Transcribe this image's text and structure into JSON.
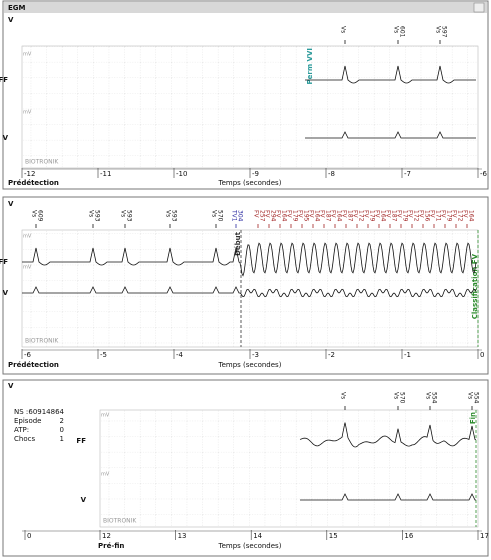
{
  "header": {
    "title": "EGM"
  },
  "panels": [
    {
      "corner": "V",
      "channels": [
        "FF",
        "V"
      ],
      "units": "mV",
      "brand": "BIOTRONIK",
      "markers": [
        {
          "label": "Vs"
        },
        {
          "label": "Vs",
          "interval": "601"
        },
        {
          "label": "Vs",
          "interval": "597"
        }
      ],
      "annotations": [
        {
          "text": "Perm VVI",
          "color": "#2a9a9a"
        }
      ],
      "x_labels": [
        "-12",
        "-11",
        "-10",
        "-9",
        "-8",
        "-7",
        "-6"
      ],
      "phase": "Prédétection",
      "axis_title": "Temps (secondes)"
    },
    {
      "corner": "V",
      "channels": [
        "FF",
        "V"
      ],
      "units": "mV",
      "brand": "BIOTRONIK",
      "markers": [
        {
          "label": "Vs",
          "interval": "609"
        },
        {
          "label": "Vs",
          "interval": "593"
        },
        {
          "label": "Vs",
          "interval": "593"
        },
        {
          "label": "Vs",
          "interval": "593"
        },
        {
          "label": "Vs",
          "interval": "570"
        },
        {
          "label": "TV1",
          "interval": "304",
          "color": "#2a2aa0"
        },
        {
          "label": "FV",
          "interval": "257",
          "color": "#a02020"
        },
        {
          "label": "FV",
          "interval": "294",
          "color": "#a02020"
        },
        {
          "label": "FV",
          "interval": "164",
          "color": "#a02020"
        },
        {
          "label": "FV",
          "interval": "179",
          "color": "#a02020"
        },
        {
          "label": "FV",
          "interval": "195",
          "color": "#a02020"
        },
        {
          "label": "FV",
          "interval": "164",
          "color": "#a02020"
        },
        {
          "label": "FV",
          "interval": "187",
          "color": "#a02020"
        },
        {
          "label": "FV",
          "interval": "164",
          "color": "#a02020"
        },
        {
          "label": "FV",
          "interval": "187",
          "color": "#a02020"
        },
        {
          "label": "FV",
          "interval": "172",
          "color": "#a02020"
        },
        {
          "label": "FV",
          "interval": "179",
          "color": "#a02020"
        },
        {
          "label": "FV",
          "interval": "164",
          "color": "#a02020"
        },
        {
          "label": "FV",
          "interval": "187",
          "color": "#a02020"
        },
        {
          "label": "FV",
          "interval": "179",
          "color": "#a02020"
        },
        {
          "label": "FV",
          "interval": "172",
          "color": "#a02020"
        },
        {
          "label": "FV",
          "interval": "156",
          "color": "#a02020"
        },
        {
          "label": "FV",
          "interval": "171",
          "color": "#a02020"
        },
        {
          "label": "FV",
          "interval": "179",
          "color": "#a02020"
        },
        {
          "label": "FV",
          "interval": "172",
          "color": "#a02020"
        },
        {
          "label": "FV",
          "interval": "164",
          "color": "#a02020"
        }
      ],
      "annotations": [
        {
          "text": "Début",
          "color": "#333333"
        },
        {
          "text": "Classification FV",
          "color": "#2a8a2a"
        }
      ],
      "x_labels": [
        "-6",
        "-5",
        "-4",
        "-3",
        "-2",
        "-1",
        "0"
      ],
      "phase": "Prédétection",
      "axis_title": "Temps (secondes)"
    },
    {
      "corner": "V",
      "channels": [
        "FF",
        "V"
      ],
      "units": "mV",
      "brand": "BIOTRONIK",
      "info": [
        [
          "NS :",
          "60914864"
        ],
        [
          "Episode",
          "2"
        ],
        [
          "ATP:",
          "0"
        ],
        [
          "Chocs",
          "1"
        ]
      ],
      "markers": [
        {
          "label": "Vs"
        },
        {
          "label": "Vs",
          "interval": "570"
        },
        {
          "label": "Vs",
          "interval": "554"
        },
        {
          "label": "Vs",
          "interval": "554"
        }
      ],
      "annotations": [
        {
          "text": "Fin",
          "color": "#2a8a2a"
        }
      ],
      "x_labels": [
        "0",
        "12",
        "13",
        "14",
        "15",
        "16",
        "17"
      ],
      "phase": "Pré-fin",
      "axis_title": "Temps (secondes)"
    }
  ]
}
